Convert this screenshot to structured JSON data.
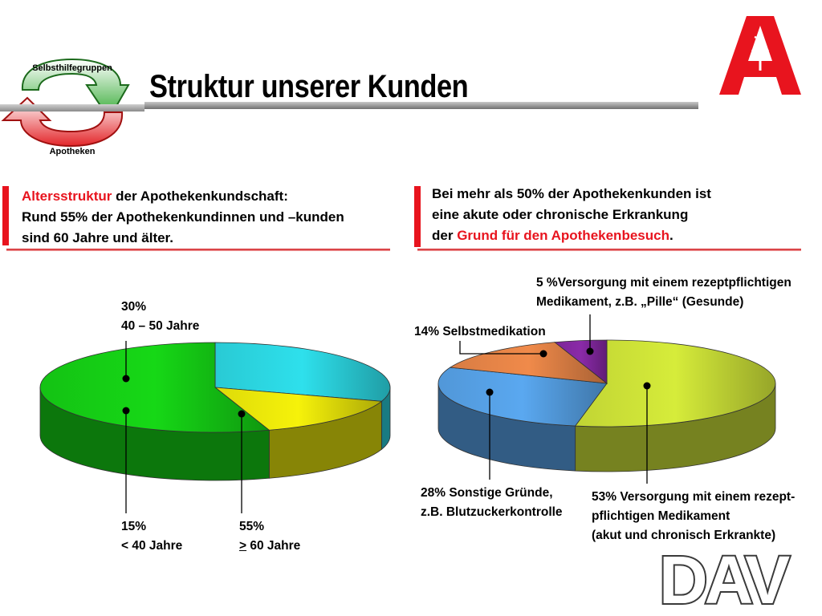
{
  "header": {
    "title": "Struktur unserer Kunden",
    "cycle_top": "Selbsthilfegruppen",
    "cycle_bottom": "Apotheken"
  },
  "left_box": {
    "highlight": "Altersstruktur",
    "line1_rest": " der Apothekenkundschaft:",
    "line2": "Rund 55% der Apothekenkundinnen und –kunden",
    "line3": "sind 60 Jahre und älter."
  },
  "right_box": {
    "line1": "Bei mehr als 50% der Apothekenkunden ist",
    "line2": "eine akute oder chronische Erkrankung",
    "line3_pre": "der ",
    "line3_highlight": "Grund für den Apothekenbesuch",
    "line3_post": "."
  },
  "chart_data": [
    {
      "type": "pie",
      "categories": [
        "30% 40 – 50 Jahre",
        "15% < 40 Jahre",
        "55% ≥ 60 Jahre"
      ],
      "values": [
        30,
        15,
        55
      ],
      "colors": [
        "#2ee0ec",
        "#f6f20a",
        "#16d816"
      ],
      "labels": {
        "a_pct": "30%",
        "a_txt": "40 – 50 Jahre",
        "b_pct": "15%",
        "b_txt": " < 40 Jahre",
        "c_pct": "55%",
        "c_ge": ">",
        "c_txt": " 60 Jahre"
      }
    },
    {
      "type": "pie",
      "categories": [
        "53% Versorgung mit einem rezeptpflichtigen Medikament",
        "28% Sonstige Gründe",
        "14% Selbstmedikation",
        "5 % Versorgung mit einem rezeptpflichtigen Medikament (Gesunde)"
      ],
      "values": [
        53,
        28,
        14,
        5
      ],
      "colors": [
        "#d6ec3a",
        "#5aa8f0",
        "#f08a4a",
        "#8a2aa8"
      ],
      "labels": {
        "d_l1": "5 %Versorgung mit einem rezeptpflichtigen",
        "d_l2": "Medikament, z.B. „Pille“ (Gesunde)",
        "c_l1": "14% Selbstmedikation",
        "b_l1": "28% Sonstige Gründe,",
        "b_l2": "z.B. Blutzuckerkontrolle",
        "a_l1": "53% Versorgung mit einem rezept-",
        "a_l2": "pflichtigen Medikament",
        "a_l3": "(akut und chronisch Erkrankte)"
      }
    }
  ],
  "logo": {
    "text": "DAV"
  }
}
